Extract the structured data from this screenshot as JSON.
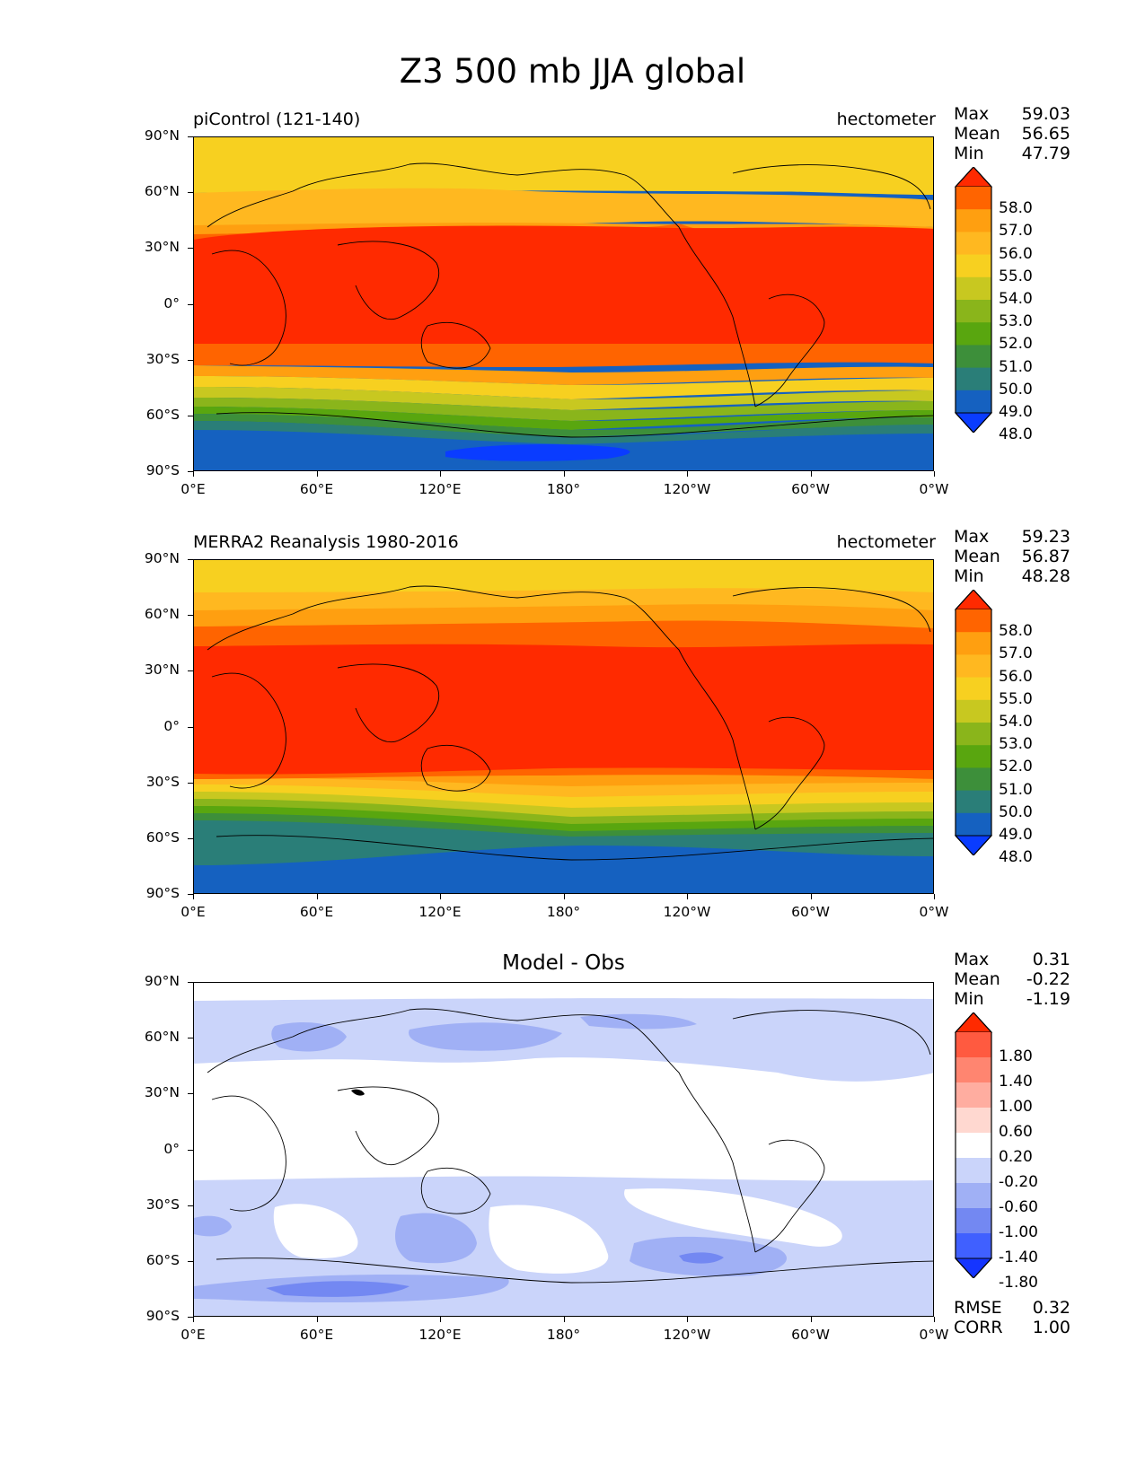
{
  "title": "Z3 500 mb JJA global",
  "axes": {
    "y_ticks": [
      "90°N",
      "60°N",
      "30°N",
      "0°",
      "30°S",
      "60°S",
      "90°S"
    ],
    "x_ticks": [
      "0°E",
      "60°E",
      "120°E",
      "180°",
      "120°W",
      "60°W",
      "0°W"
    ]
  },
  "panels": [
    {
      "left_title": "piControl (121-140)",
      "right_title": "hectometer",
      "stats": {
        "max_label": "Max",
        "max": "59.03",
        "mean_label": "Mean",
        "mean": "56.65",
        "min_label": "Min",
        "min": "47.79"
      },
      "colorbar_labels": [
        "58.0",
        "57.0",
        "56.0",
        "55.0",
        "54.0",
        "53.0",
        "52.0",
        "51.0",
        "50.0",
        "49.0",
        "48.0"
      ]
    },
    {
      "left_title": "MERRA2 Reanalysis 1980-2016",
      "right_title": "hectometer",
      "stats": {
        "max_label": "Max",
        "max": "59.23",
        "mean_label": "Mean",
        "mean": "56.87",
        "min_label": "Min",
        "min": "48.28"
      },
      "colorbar_labels": [
        "58.0",
        "57.0",
        "56.0",
        "55.0",
        "54.0",
        "53.0",
        "52.0",
        "51.0",
        "50.0",
        "49.0",
        "48.0"
      ]
    },
    {
      "center_title": "Model - Obs",
      "stats": {
        "max_label": "Max",
        "max": "0.31",
        "mean_label": "Mean",
        "mean": "-0.22",
        "min_label": "Min",
        "min": "-1.19"
      },
      "colorbar_labels": [
        "1.80",
        "1.40",
        "1.00",
        "0.60",
        "0.20",
        "-0.20",
        "-0.60",
        "-1.00",
        "-1.40",
        "-1.80"
      ],
      "rmse_label": "RMSE",
      "rmse": "0.32",
      "corr_label": "CORR",
      "corr": "1.00"
    }
  ],
  "colors": {
    "field_levels": [
      "#ff2a00",
      "#ff6400",
      "#ff9f10",
      "#ffb820",
      "#f7d020",
      "#c8c820",
      "#8ab51b",
      "#59a60f",
      "#3d8f3a",
      "#2a7e78",
      "#1561c0",
      "#0a3cff"
    ],
    "diff_levels": [
      "#ff2a00",
      "#ff5a40",
      "#ff8570",
      "#ffada0",
      "#ffd8d0",
      "#ffffff",
      "#cad4fa",
      "#a0b0f5",
      "#7388f2",
      "#4060ff",
      "#1535ff"
    ]
  }
}
